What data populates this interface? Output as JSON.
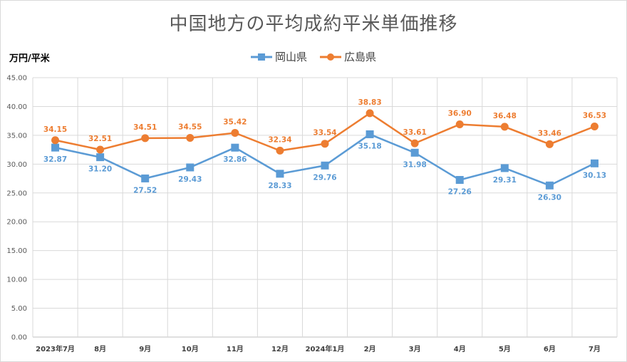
{
  "title": "中国地方の平均成約平米単価推移",
  "unit_label": "万円/平米",
  "colors": {
    "okayama": "#5b9bd5",
    "hiroshima": "#ed7d31",
    "grid": "#d9d9d9"
  },
  "chart_data": {
    "type": "line",
    "title": "中国地方の平均成約平米単価推移",
    "ylabel": "万円/平米",
    "xlabel": "",
    "ylim": [
      0,
      45
    ],
    "yticks": [
      "0.00",
      "5.00",
      "10.00",
      "15.00",
      "20.00",
      "25.00",
      "30.00",
      "35.00",
      "40.00",
      "45.00"
    ],
    "grid": true,
    "legend_position": "top",
    "categories": [
      "2023年7月",
      "8月",
      "9月",
      "10月",
      "11月",
      "12月",
      "2024年1月",
      "2月",
      "3月",
      "4月",
      "5月",
      "6月",
      "7月"
    ],
    "series": [
      {
        "name": "岡山県",
        "marker": "square",
        "values": [
          32.87,
          31.2,
          27.52,
          29.43,
          32.86,
          28.33,
          29.76,
          35.18,
          31.98,
          27.26,
          29.31,
          26.3,
          30.13
        ],
        "labels": [
          "32.87",
          "31.20",
          "27.52",
          "29.43",
          "32.86",
          "28.33",
          "29.76",
          "35.18",
          "31.98",
          "27.26",
          "29.31",
          "26.30",
          "30.13"
        ]
      },
      {
        "name": "広島県",
        "marker": "circle",
        "values": [
          34.15,
          32.51,
          34.51,
          34.55,
          35.42,
          32.34,
          33.54,
          38.83,
          33.61,
          36.9,
          36.48,
          33.46,
          36.53
        ],
        "labels": [
          "34.15",
          "32.51",
          "34.51",
          "34.55",
          "35.42",
          "32.34",
          "33.54",
          "38.83",
          "33.61",
          "36.90",
          "36.48",
          "33.46",
          "36.53"
        ]
      }
    ]
  }
}
